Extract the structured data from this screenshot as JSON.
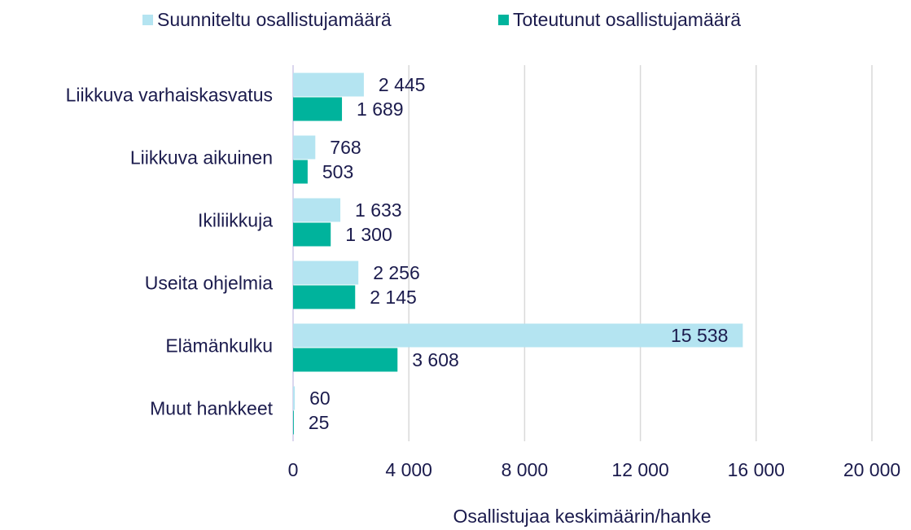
{
  "chart_data": {
    "type": "hbar",
    "categories": [
      "Liikkuva varhaiskasvatus",
      "Liikkuva aikuinen",
      "Ikiliikkuja",
      "Useita ohjelmia",
      "Elämänkulku",
      "Muut hankkeet"
    ],
    "series": [
      {
        "name": "Suunniteltu osallistujamäärä",
        "color": "#b4e4f1",
        "values": [
          2445,
          768,
          1633,
          2256,
          15538,
          60
        ],
        "value_labels": [
          "2 445",
          "768",
          "1 633",
          "2 256",
          "15 538",
          "60"
        ]
      },
      {
        "name": "Toteutunut osallistujamäärä",
        "color": "#00b39c",
        "values": [
          1689,
          503,
          1300,
          2145,
          3608,
          25
        ],
        "value_labels": [
          "1 689",
          "503",
          "1 300",
          "2 145",
          "3 608",
          "25"
        ]
      }
    ],
    "xlabel": "Osallistujaa keskimäärin/hanke",
    "xlim": [
      0,
      20000
    ],
    "xticks": [
      0,
      {
        "value": 4000,
        "label": "4 000"
      },
      {
        "value": 8000,
        "label": "8 000"
      },
      {
        "value": 12000,
        "label": "12 000"
      },
      {
        "value": 16000,
        "label": "16 000"
      },
      {
        "value": 20000,
        "label": "20 000"
      }
    ],
    "grid": true,
    "legend": "top"
  }
}
